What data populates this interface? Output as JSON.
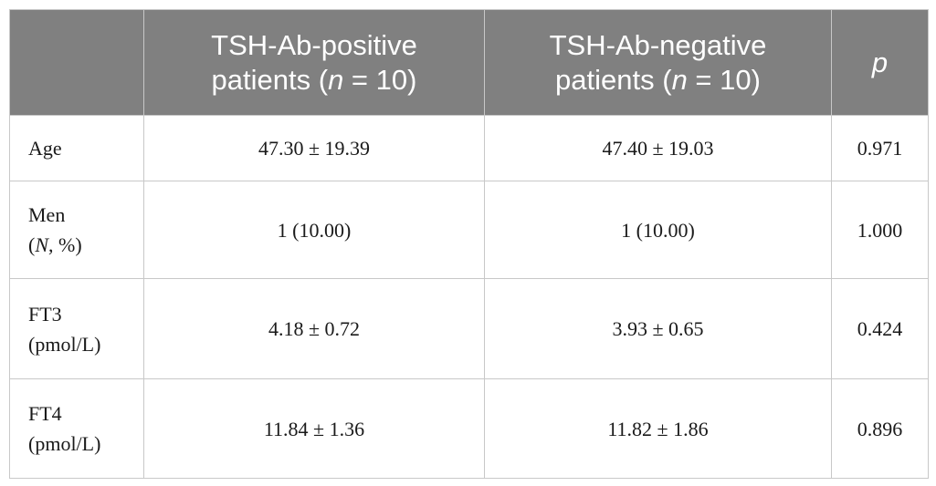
{
  "header": {
    "col1": {
      "line1": "TSH-Ab-positive",
      "line2_pre": "patients (",
      "line2_var": "n",
      "line2_post": " = 10)"
    },
    "col2": {
      "line1": "TSH-Ab-negative",
      "line2_pre": "patients (",
      "line2_var": "n",
      "line2_post": " = 10)"
    },
    "col3": "p"
  },
  "rows": [
    {
      "label": "Age",
      "positive": "47.30 ± 19.39",
      "negative": "47.40 ± 19.03",
      "p": "0.971"
    },
    {
      "label_line1": "Men",
      "label_line2_pre": "(",
      "label_line2_var": "N",
      "label_line2_post": ", %)",
      "positive": "1 (10.00)",
      "negative": "1 (10.00)",
      "p": "1.000"
    },
    {
      "label_line1": "FT3",
      "label_line2": "(pmol/L)",
      "positive": "4.18 ± 0.72",
      "negative": "3.93 ± 0.65",
      "p": "0.424"
    },
    {
      "label_line1": "FT4",
      "label_line2": "(pmol/L)",
      "positive": "11.84 ± 1.36",
      "negative": "11.82 ± 1.86",
      "p": "0.896"
    }
  ]
}
